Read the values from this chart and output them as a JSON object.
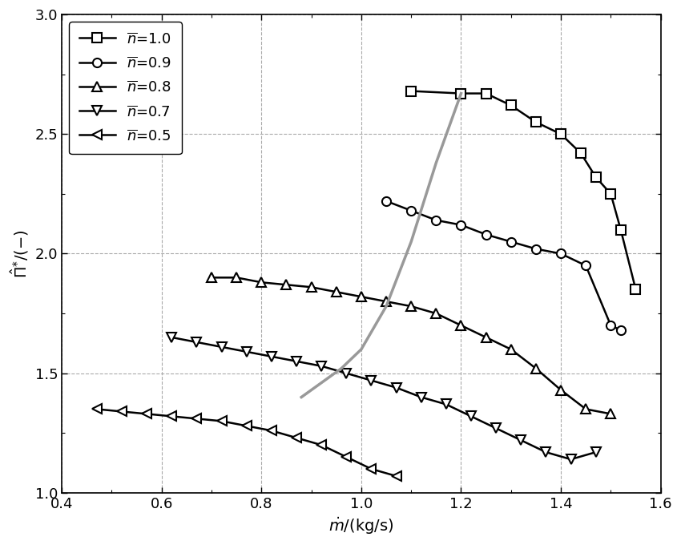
{
  "xlim": [
    0.4,
    1.6
  ],
  "ylim": [
    1.0,
    3.0
  ],
  "xticks": [
    0.4,
    0.6,
    0.8,
    1.0,
    1.2,
    1.4,
    1.6
  ],
  "yticks": [
    1.0,
    1.5,
    2.0,
    2.5,
    3.0
  ],
  "background_color": "#ffffff",
  "n10_x": [
    1.1,
    1.2,
    1.25,
    1.3,
    1.35,
    1.4,
    1.44,
    1.47,
    1.5,
    1.52,
    1.55
  ],
  "n10_y": [
    2.68,
    2.67,
    2.67,
    2.62,
    2.55,
    2.5,
    2.42,
    2.32,
    2.25,
    2.1,
    1.85
  ],
  "n09_x": [
    1.05,
    1.1,
    1.15,
    1.2,
    1.25,
    1.3,
    1.35,
    1.4,
    1.45,
    1.5,
    1.52
  ],
  "n09_y": [
    2.22,
    2.18,
    2.14,
    2.12,
    2.08,
    2.05,
    2.02,
    2.0,
    1.95,
    1.7,
    1.68
  ],
  "n08_x": [
    0.7,
    0.75,
    0.8,
    0.85,
    0.9,
    0.95,
    1.0,
    1.05,
    1.1,
    1.15,
    1.2,
    1.25,
    1.3,
    1.35,
    1.4,
    1.45,
    1.5
  ],
  "n08_y": [
    1.9,
    1.9,
    1.88,
    1.87,
    1.86,
    1.84,
    1.82,
    1.8,
    1.78,
    1.75,
    1.7,
    1.65,
    1.6,
    1.52,
    1.43,
    1.35,
    1.33
  ],
  "n07_x": [
    0.62,
    0.67,
    0.72,
    0.77,
    0.82,
    0.87,
    0.92,
    0.97,
    1.02,
    1.07,
    1.12,
    1.17,
    1.22,
    1.27,
    1.32,
    1.37,
    1.42,
    1.47
  ],
  "n07_y": [
    1.65,
    1.63,
    1.61,
    1.59,
    1.57,
    1.55,
    1.53,
    1.5,
    1.47,
    1.44,
    1.4,
    1.37,
    1.32,
    1.27,
    1.22,
    1.17,
    1.14,
    1.17
  ],
  "n05_x": [
    0.47,
    0.52,
    0.57,
    0.62,
    0.67,
    0.72,
    0.77,
    0.82,
    0.87,
    0.92,
    0.97,
    1.02,
    1.07
  ],
  "n05_y": [
    1.35,
    1.34,
    1.33,
    1.32,
    1.31,
    1.3,
    1.28,
    1.26,
    1.23,
    1.2,
    1.15,
    1.1,
    1.07
  ],
  "surge_x": [
    0.88,
    0.92,
    0.96,
    1.0,
    1.05,
    1.1,
    1.15,
    1.2
  ],
  "surge_y": [
    1.4,
    1.46,
    1.52,
    1.6,
    1.78,
    2.05,
    2.38,
    2.67
  ],
  "line_color": "#000000",
  "surge_color": "#999999",
  "marker_size": 8,
  "linewidth": 1.8,
  "surge_linewidth": 2.5
}
